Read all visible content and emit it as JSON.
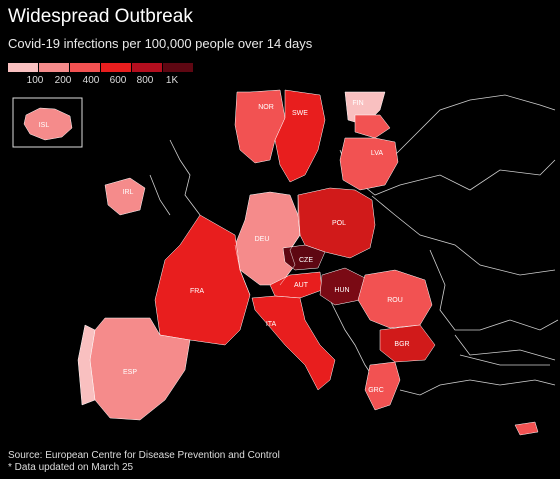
{
  "title": "Widespread Outbreak",
  "subtitle": "Covid-19 infections per 100,000 people over 14 days",
  "legend": {
    "swatches": [
      "#f9c0c0",
      "#f58b8b",
      "#f25252",
      "#e81e1e",
      "#b30e1e",
      "#5e0712"
    ],
    "ticks": [
      "100",
      "200",
      "400",
      "600",
      "800",
      "1K"
    ]
  },
  "countries": [
    {
      "code": "ISL",
      "color": "#f58b8b"
    },
    {
      "code": "NOR",
      "color": "#f25252"
    },
    {
      "code": "SWE",
      "color": "#e81e1e"
    },
    {
      "code": "FIN",
      "color": "#f9c0c0"
    },
    {
      "code": "LVA",
      "color": "#f25252"
    },
    {
      "code": "IRL",
      "color": "#f58b8b"
    },
    {
      "code": "DEU",
      "color": "#f58b8b"
    },
    {
      "code": "POL",
      "color": "#d11a1a"
    },
    {
      "code": "CZE",
      "color": "#5e0712"
    },
    {
      "code": "FRA",
      "color": "#e81e1e"
    },
    {
      "code": "AUT",
      "color": "#e81e1e"
    },
    {
      "code": "HUN",
      "color": "#7a0a14"
    },
    {
      "code": "ROU",
      "color": "#f25252"
    },
    {
      "code": "ITA",
      "color": "#e81e1e"
    },
    {
      "code": "BGR",
      "color": "#d11a1a"
    },
    {
      "code": "ESP",
      "color": "#f58b8b"
    },
    {
      "code": "GRC",
      "color": "#f25252"
    }
  ],
  "footer": {
    "source": "Source: European Centre for Disease Prevention and Control",
    "note": "* Data updated on March 25"
  }
}
